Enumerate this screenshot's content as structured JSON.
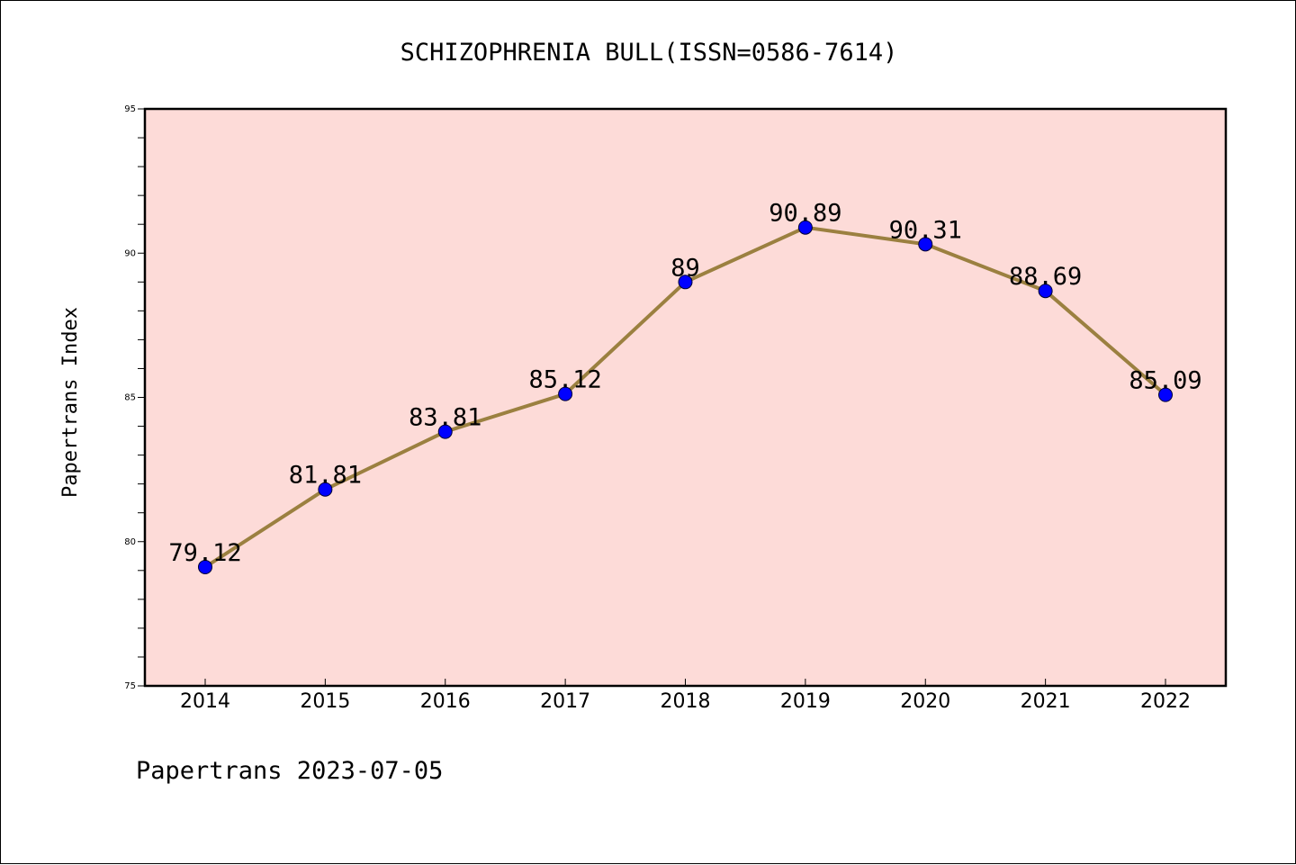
{
  "chart_data": {
    "type": "line",
    "title": "SCHIZOPHRENIA BULL(ISSN=0586-7614)",
    "xlabel": "",
    "ylabel": "Papertrans Index",
    "categories": [
      "2014",
      "2015",
      "2016",
      "2017",
      "2018",
      "2019",
      "2020",
      "2021",
      "2022"
    ],
    "series": [
      {
        "values": [
          79.12,
          81.81,
          83.81,
          85.12,
          89,
          90.89,
          90.31,
          88.69,
          85.09
        ],
        "labels": [
          "79.12",
          "81.81",
          "83.81",
          "85.12",
          "89",
          "90.89",
          "90.31",
          "88.69",
          "85.09"
        ]
      }
    ],
    "ylim": [
      75,
      95
    ],
    "yticks": [
      "75",
      "80",
      "85",
      "90",
      "95"
    ],
    "grid": false,
    "legend": "none"
  },
  "footer": {
    "text": "Papertrans 2023-07-05"
  },
  "colors": {
    "plot_background": "#FDDBD8",
    "line": "#9B8040",
    "marker": "#0000FF",
    "axis": "#000000"
  }
}
